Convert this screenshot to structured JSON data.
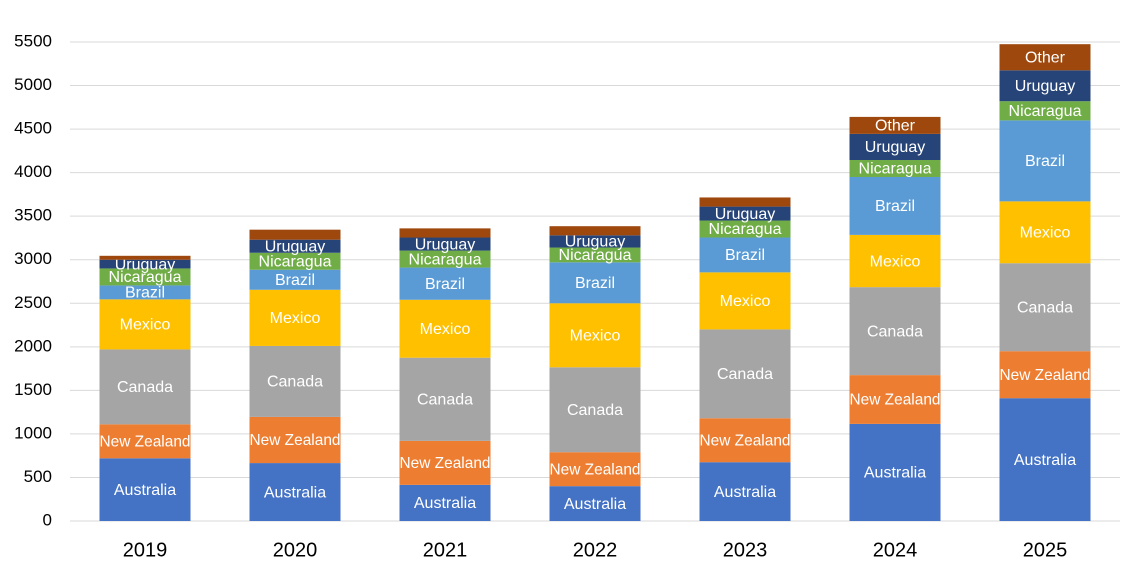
{
  "chart_data": {
    "type": "stacked-bar",
    "categories": [
      "2019",
      "2020",
      "2021",
      "2022",
      "2023",
      "2024",
      "2025"
    ],
    "series": [
      {
        "name": "Australia",
        "color": "#4472c4",
        "values": [
          720,
          665,
          415,
          400,
          675,
          1115,
          1410
        ]
      },
      {
        "name": "New Zealand",
        "color": "#ed7d31",
        "values": [
          390,
          530,
          505,
          390,
          505,
          560,
          540
        ]
      },
      {
        "name": "Canada",
        "color": "#a5a5a5",
        "values": [
          860,
          815,
          955,
          975,
          1020,
          1010,
          1010
        ]
      },
      {
        "name": "Mexico",
        "color": "#ffc000",
        "values": [
          575,
          645,
          665,
          735,
          655,
          600,
          710
        ]
      },
      {
        "name": "Brazil",
        "color": "#5b9bd5",
        "values": [
          160,
          230,
          370,
          470,
          400,
          665,
          930
        ]
      },
      {
        "name": "Nicaragua",
        "color": "#70ad47",
        "values": [
          195,
          195,
          195,
          170,
          195,
          195,
          220
        ]
      },
      {
        "name": "Uruguay",
        "color": "#264478",
        "values": [
          100,
          150,
          150,
          140,
          160,
          300,
          355
        ]
      },
      {
        "name": "Other",
        "color": "#9e480e",
        "values": [
          45,
          115,
          105,
          105,
          105,
          195,
          300
        ]
      }
    ],
    "ylim": [
      0,
      5500
    ],
    "yticks": [
      0,
      500,
      1000,
      1500,
      2000,
      2500,
      3000,
      3500,
      4000,
      4500,
      5000,
      5500
    ],
    "grid": true
  }
}
